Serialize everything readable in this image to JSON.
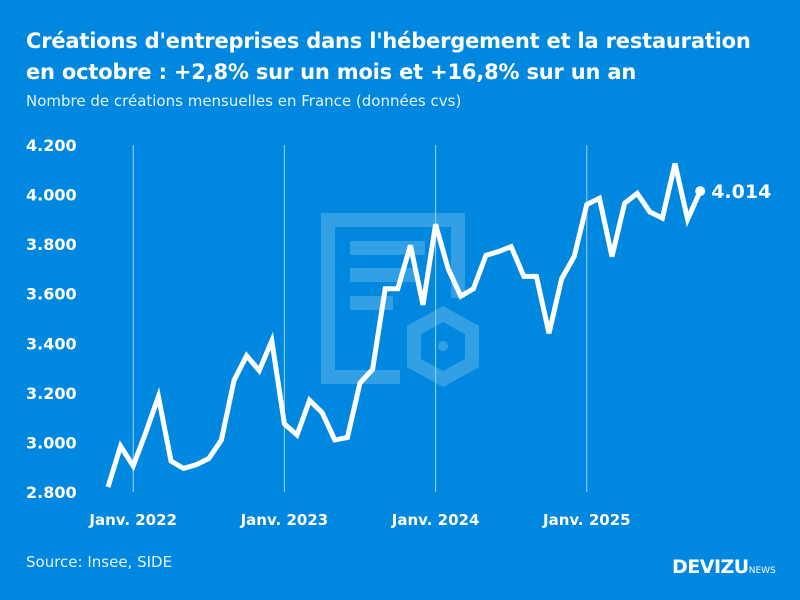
{
  "title": "Créations d'entreprises dans l'hébergement et la restauration en octobre : +2,8% sur un mois et +16,8% sur un an",
  "subtitle": "Nombre de créations mensuelles en France (données cvs)",
  "source": "Source: Insee, SIDE",
  "logo": {
    "main": "DEVIZU",
    "suffix": "NEWS"
  },
  "colors": {
    "background": "#0088e0",
    "line": "#ffffff"
  },
  "chart_data": {
    "type": "line",
    "ylim": [
      2800,
      4200
    ],
    "yticks": [
      2800,
      3000,
      3200,
      3400,
      3600,
      3800,
      4000,
      4200
    ],
    "ytick_labels": [
      "2.800",
      "3.000",
      "3.200",
      "3.400",
      "3.600",
      "3.800",
      "4.000",
      "4.200"
    ],
    "xtick_labels": [
      "Janv. 2022",
      "Janv. 2023",
      "Janv. 2024",
      "Janv. 2025"
    ],
    "grid": "vertical at January",
    "last_label": "4.014",
    "x": [
      "2021-11",
      "2021-12",
      "2022-01",
      "2022-02",
      "2022-03",
      "2022-04",
      "2022-05",
      "2022-06",
      "2022-07",
      "2022-08",
      "2022-09",
      "2022-10",
      "2022-11",
      "2022-12",
      "2023-01",
      "2023-02",
      "2023-03",
      "2023-04",
      "2023-05",
      "2023-06",
      "2023-07",
      "2023-08",
      "2023-09",
      "2023-10",
      "2023-11",
      "2023-12",
      "2024-01",
      "2024-02",
      "2024-03",
      "2024-04",
      "2024-05",
      "2024-06",
      "2024-07",
      "2024-08",
      "2024-09",
      "2024-10",
      "2024-11",
      "2024-12",
      "2025-01",
      "2025-02",
      "2025-03",
      "2025-04",
      "2025-05",
      "2025-06",
      "2025-07",
      "2025-08",
      "2025-09",
      "2025-10"
    ],
    "values": [
      2820,
      2985,
      2905,
      3040,
      3185,
      2925,
      2895,
      2910,
      2935,
      3010,
      3250,
      3350,
      3290,
      3410,
      3075,
      3030,
      3170,
      3120,
      3010,
      3020,
      3240,
      3295,
      3620,
      3620,
      3795,
      3555,
      3880,
      3700,
      3590,
      3620,
      3755,
      3770,
      3790,
      3670,
      3670,
      3440,
      3660,
      3750,
      3960,
      3985,
      3750,
      3965,
      4005,
      3930,
      3905,
      4125,
      3900,
      4014
    ]
  }
}
